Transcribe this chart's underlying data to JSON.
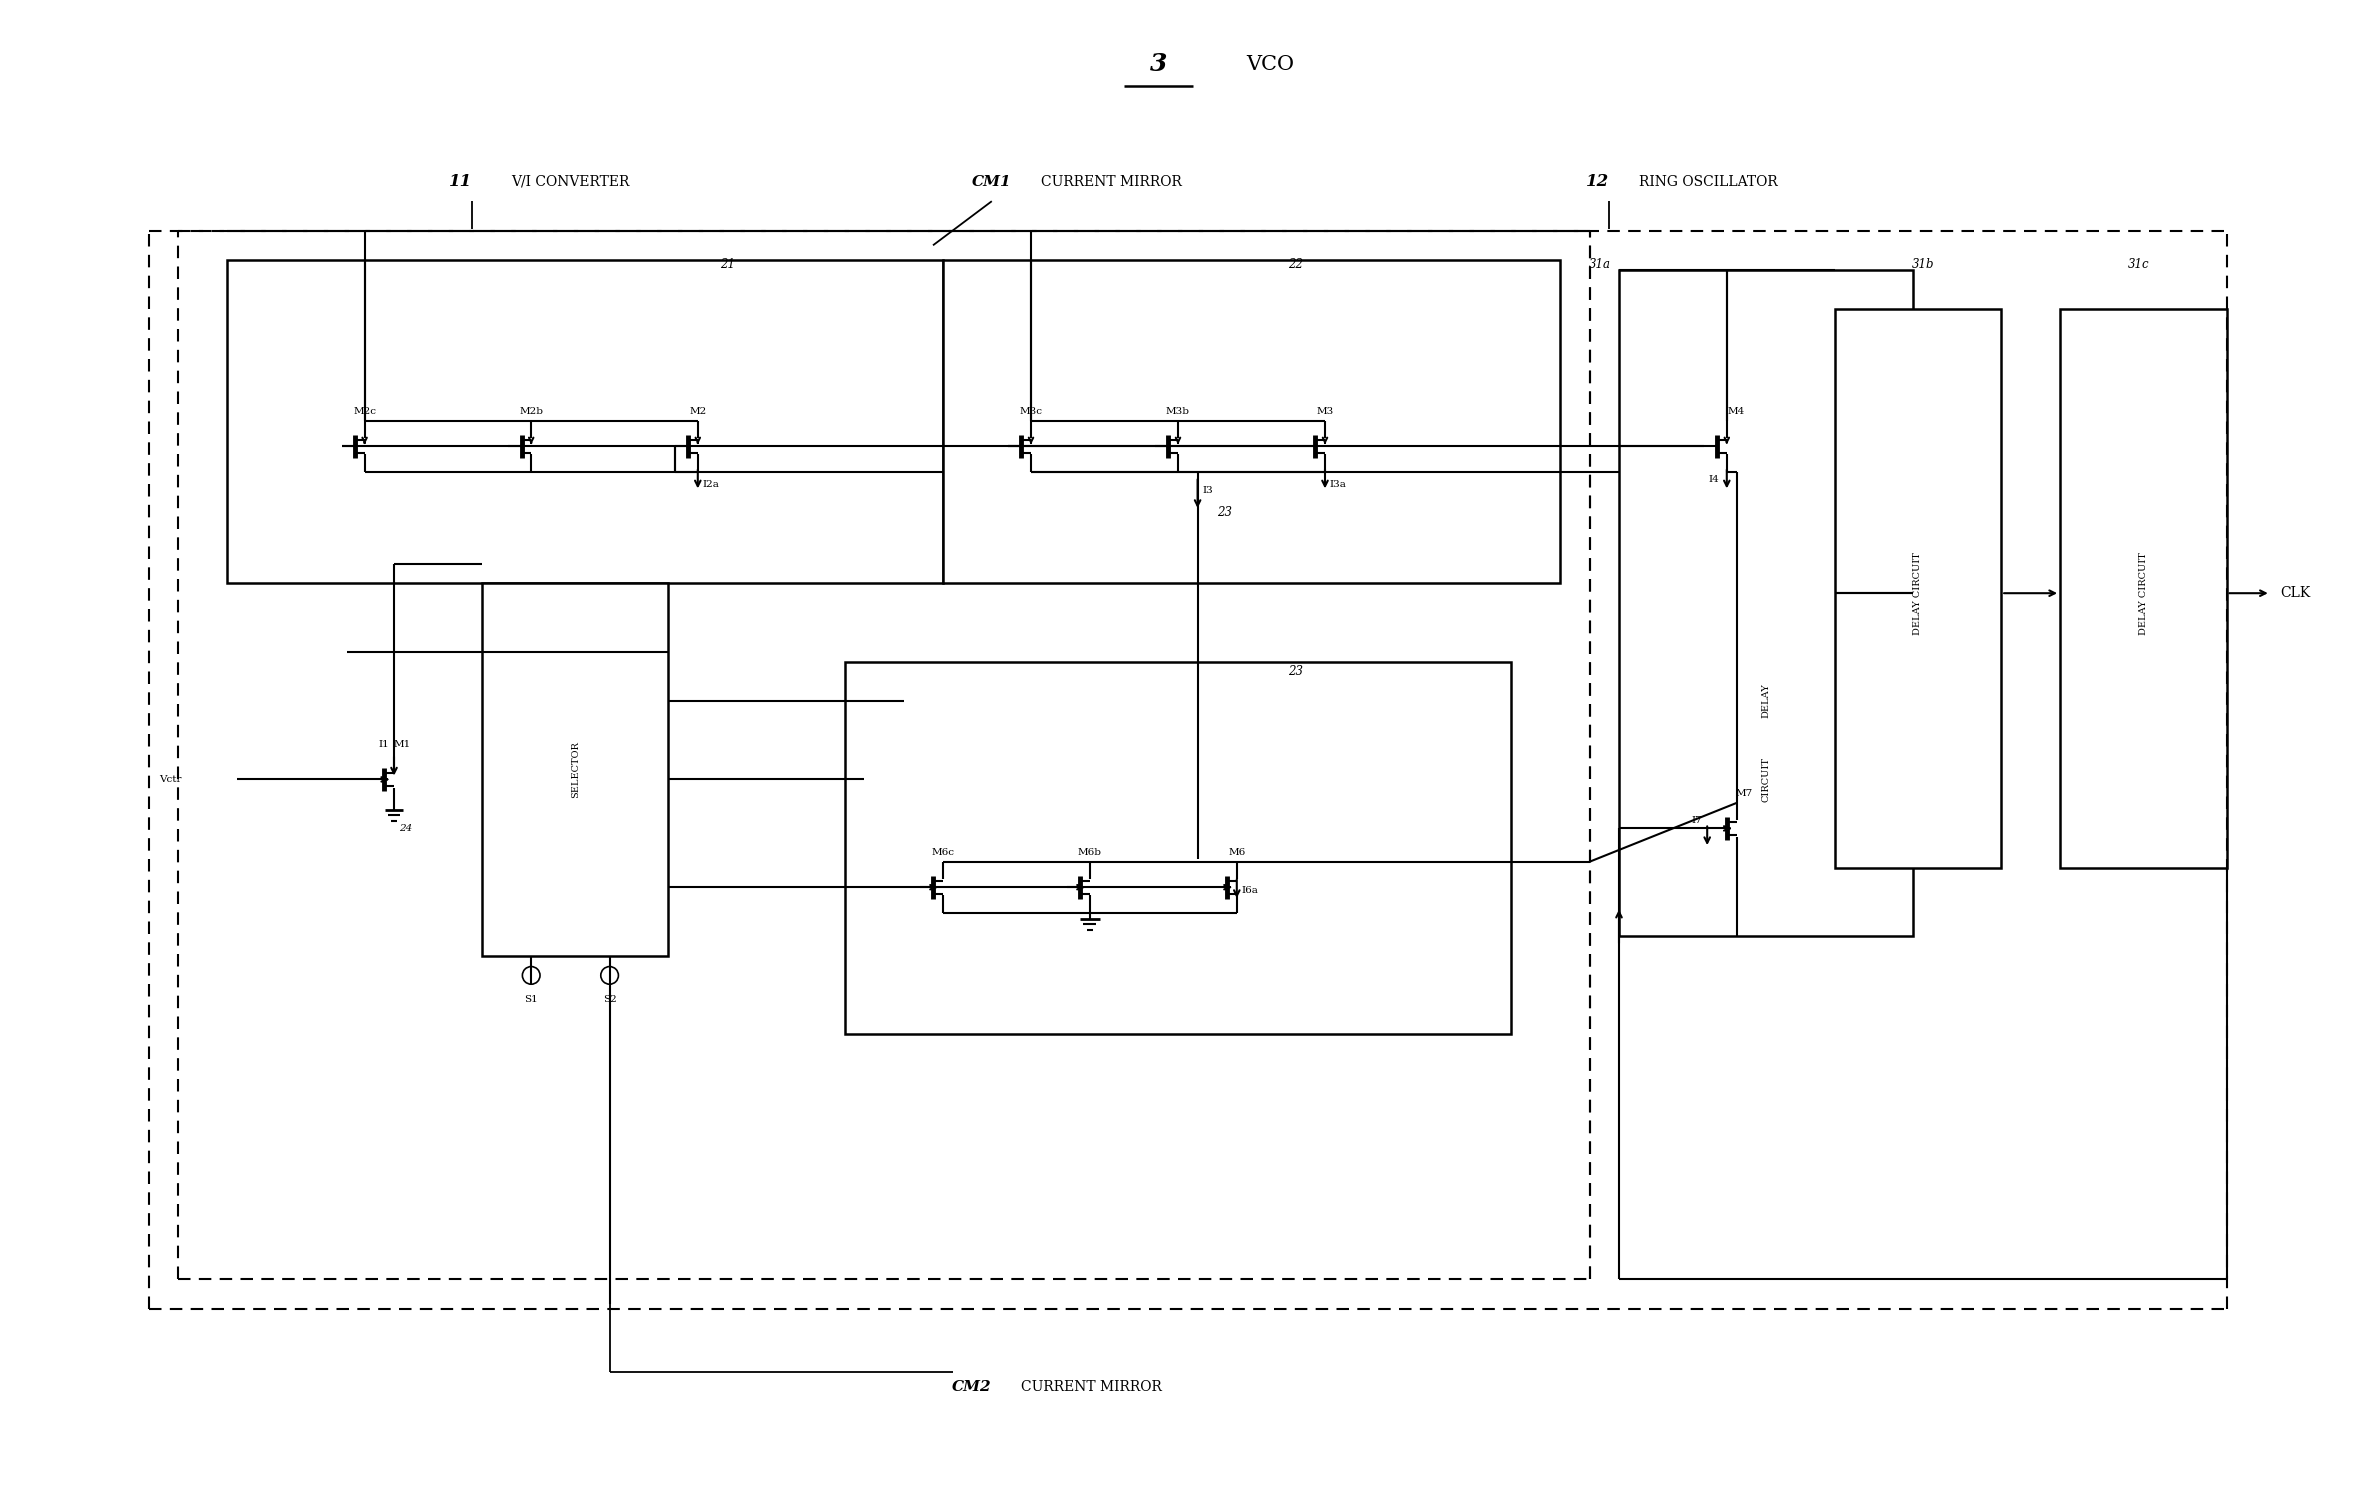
{
  "title_num": "3",
  "title_text": "VCO",
  "background_color": "#ffffff",
  "fig_width": 23.56,
  "fig_height": 15.0,
  "label_11": "11",
  "label_11_text": "V/I CONVERTER",
  "label_12": "12",
  "label_12_text": "RING OSCILLATOR",
  "label_cm1": "CM1",
  "label_cm1_text": "CURRENT MIRROR",
  "label_cm2": "CM2",
  "label_cm2_text": "CURRENT MIRROR",
  "label_21": "21",
  "label_22": "22",
  "label_23": "23",
  "label_24": "24",
  "label_31a": "31a",
  "label_31b": "31b",
  "label_31c": "31c",
  "vctr": "Vctr",
  "clk": "CLK",
  "s1": "S1",
  "s2": "S2",
  "selector": "SELECTOR",
  "delay_circuit": "DELAY CIRCUIT"
}
